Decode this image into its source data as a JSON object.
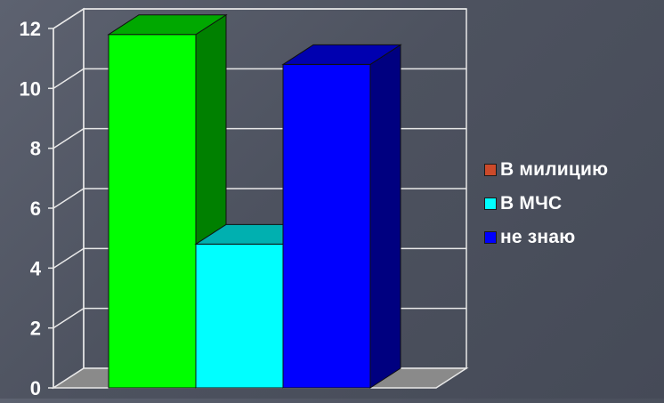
{
  "chart_data": {
    "type": "bar",
    "style": "3d-column",
    "ylim": [
      0,
      12
    ],
    "yticks": [
      "0",
      "2",
      "4",
      "6",
      "8",
      "10",
      "12"
    ],
    "grid": true,
    "legend_position": "right",
    "series": [
      {
        "name": "",
        "value": 11.8,
        "front": "#00ff00",
        "side": "#008000",
        "top": "#00a800"
      },
      {
        "name": "В МЧС",
        "value": 4.8,
        "front": "#00ffff",
        "side": "#008080",
        "top": "#00b0b0"
      },
      {
        "name": "не знаю",
        "value": 10.8,
        "front": "#0000ff",
        "side": "#000080",
        "top": "#0000b0"
      }
    ],
    "legend": [
      {
        "label": "В милицию",
        "color": "#cc4a2a"
      },
      {
        "label": "В МЧС",
        "color": "#00ffff"
      },
      {
        "label": "не знаю",
        "color": "#0000ff"
      }
    ]
  }
}
